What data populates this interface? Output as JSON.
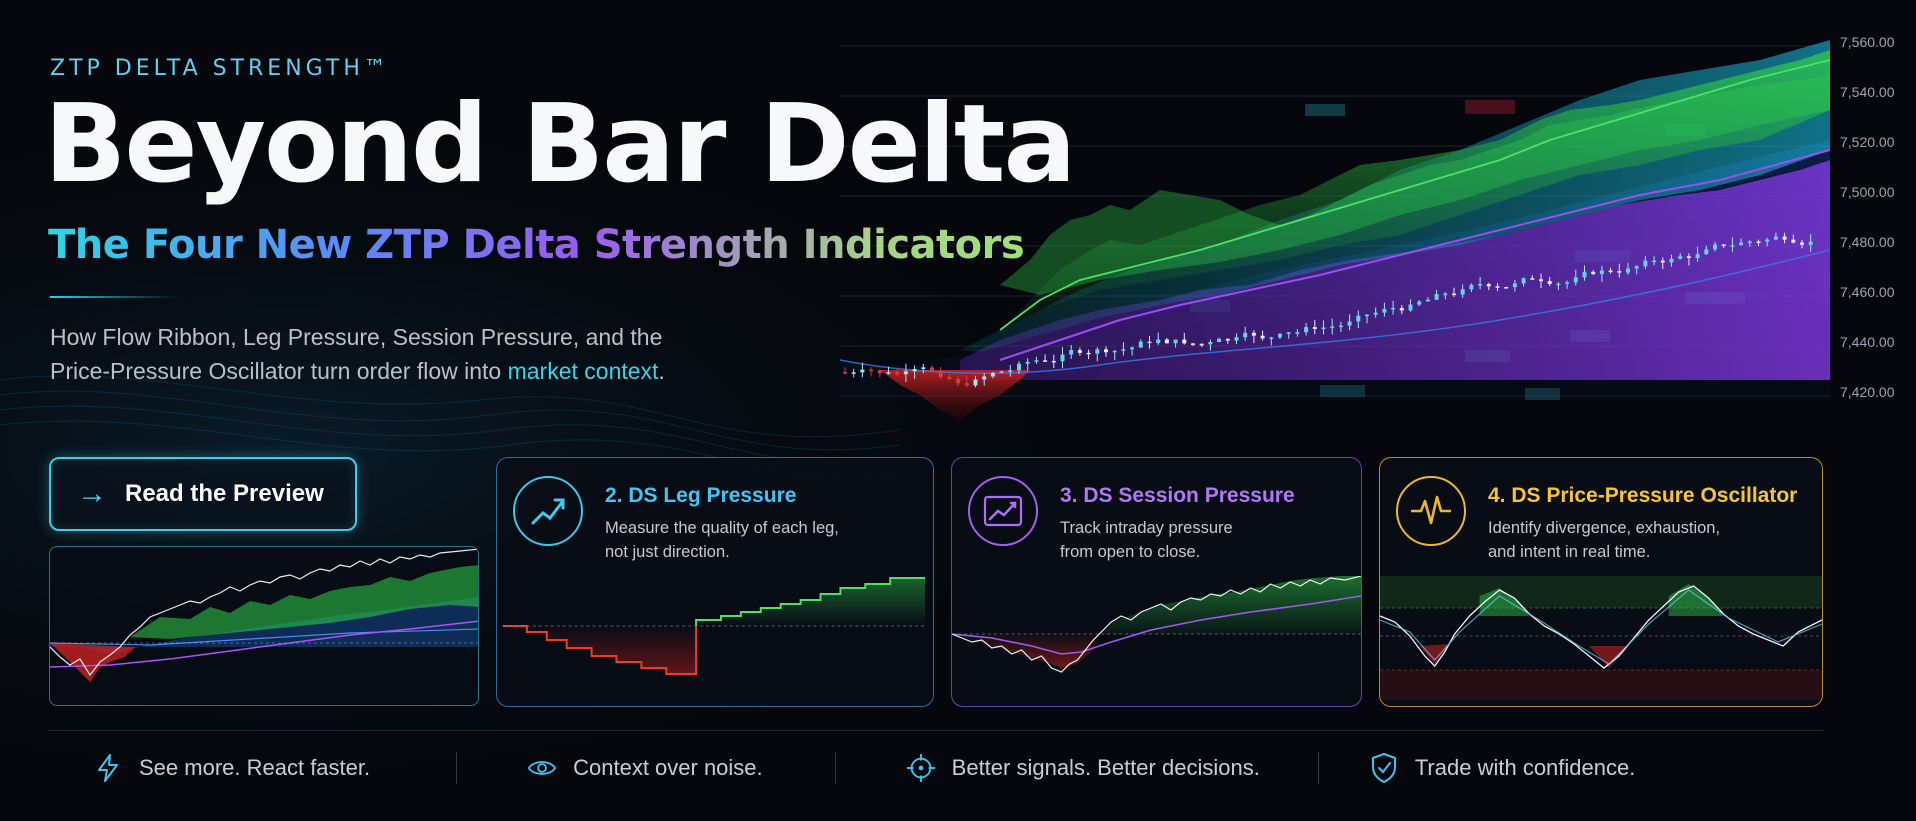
{
  "hero": {
    "eyebrow": "ZTP DELTA STRENGTH™",
    "title": "Beyond Bar Delta",
    "subtitle": "The Four New ZTP Delta Strength Indicators",
    "description_part1": "How Flow Ribbon, Leg Pressure, Session Pressure, and the Price-Pressure Oscillator turn order flow into",
    "description_highlight": "market context",
    "description_end": "."
  },
  "cta": {
    "label": "Read the Preview",
    "icon": "arrow-right-icon"
  },
  "price_axis": {
    "ticks": [
      "7,560.00",
      "7,540.00",
      "7,520.00",
      "7,500.00",
      "7,480.00",
      "7,460.00",
      "7,440.00",
      "7,420.00"
    ]
  },
  "cards": [
    {
      "title": "2. DS Leg Pressure",
      "description_line1": "Measure the quality of each leg,",
      "description_line2": "not just direction.",
      "icon": "trend-up-icon",
      "accent": "#44c4f2"
    },
    {
      "title": "3. DS Session Pressure",
      "description_line1": "Track intraday pressure",
      "description_line2": "from open to close.",
      "icon": "chart-trend-icon",
      "accent": "#b277f5"
    },
    {
      "title": "4. DS Price-Pressure Oscillator",
      "description_line1": "Identify divergence, exhaustion,",
      "description_line2": "and intent in real time.",
      "icon": "pulse-icon",
      "accent": "#f7c531"
    }
  ],
  "footer": [
    {
      "label": "See more. React faster.",
      "icon": "lightning-icon",
      "color": "#3cc6ec"
    },
    {
      "label": "Context over noise.",
      "icon": "eye-icon",
      "color": "#3cc6ec"
    },
    {
      "label": "Better signals. Better decisions.",
      "icon": "target-icon",
      "color": "#3cc6ec"
    },
    {
      "label": "Trade with confidence.",
      "icon": "shield-check-icon",
      "color": "#3cc6ec"
    }
  ],
  "colors": {
    "cyan": "#38cfe6",
    "green": "#3fd15a",
    "purple": "#9b4ff0",
    "red": "#e03030",
    "gold": "#f0b828"
  }
}
